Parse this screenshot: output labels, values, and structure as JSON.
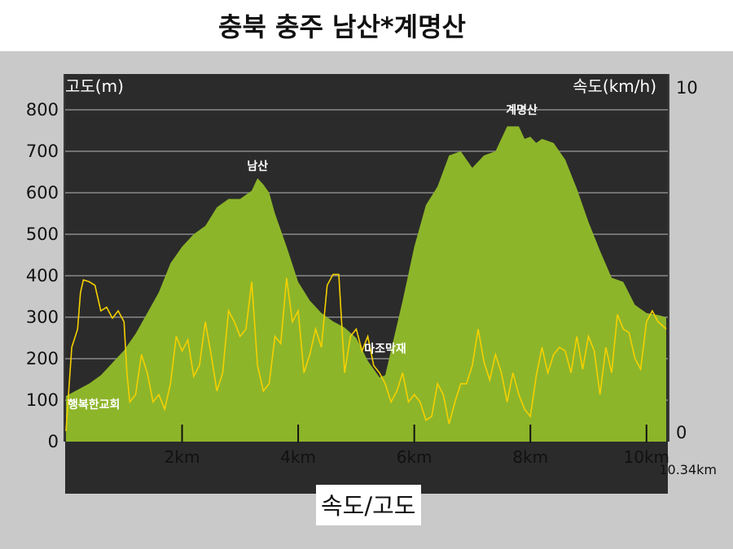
{
  "title": "충북 충주 남산*계명산",
  "footer": "속도/고도",
  "colors": {
    "plot_bg": "#2b2b2b",
    "panel_bg": "#c9c9c9",
    "elevation_fill": "#8db52a",
    "speed_line": "#f5d000",
    "grid": "#8a8a8a"
  },
  "chart_data": {
    "type": "area",
    "x_unit": "km",
    "x_range": [
      0,
      10.34
    ],
    "x_end_label": "10.34km",
    "xticks": [
      "2km",
      "4km",
      "6km",
      "8km",
      "10km"
    ],
    "xtick_values": [
      2,
      4,
      6,
      8,
      10
    ],
    "left_axis": {
      "label": "고도(m)",
      "range": [
        0,
        850
      ],
      "ticks": [
        "0",
        "100",
        "200",
        "300",
        "400",
        "500",
        "600",
        "700",
        "800"
      ],
      "tick_values": [
        0,
        100,
        200,
        300,
        400,
        500,
        600,
        700,
        800
      ]
    },
    "right_axis": {
      "label": "속도(km/h)",
      "range": [
        0,
        10
      ],
      "ticks": [
        "0",
        "10"
      ],
      "tick_values": [
        0,
        10
      ]
    },
    "grid": true,
    "series": [
      {
        "type": "area",
        "axis": "left",
        "x": [
          0,
          0.2,
          0.4,
          0.6,
          0.8,
          1.0,
          1.2,
          1.4,
          1.6,
          1.8,
          2.0,
          2.2,
          2.4,
          2.6,
          2.8,
          3.0,
          3.2,
          3.3,
          3.4,
          3.5,
          3.6,
          3.8,
          4.0,
          4.2,
          4.4,
          4.6,
          4.8,
          5.0,
          5.2,
          5.4,
          5.5,
          5.6,
          5.8,
          6.0,
          6.2,
          6.4,
          6.6,
          6.8,
          6.9,
          7.0,
          7.2,
          7.4,
          7.6,
          7.8,
          7.9,
          8.0,
          8.1,
          8.2,
          8.4,
          8.6,
          8.8,
          9.0,
          9.2,
          9.4,
          9.6,
          9.8,
          10.0,
          10.2,
          10.34
        ],
        "values": [
          110,
          125,
          140,
          160,
          190,
          220,
          260,
          310,
          360,
          430,
          470,
          500,
          520,
          565,
          585,
          585,
          605,
          635,
          620,
          600,
          550,
          470,
          385,
          340,
          310,
          290,
          275,
          250,
          195,
          155,
          160,
          220,
          340,
          470,
          570,
          615,
          690,
          700,
          680,
          660,
          690,
          700,
          760,
          760,
          730,
          735,
          720,
          730,
          720,
          680,
          610,
          530,
          460,
          395,
          385,
          330,
          310,
          305,
          300
        ]
      },
      {
        "type": "line",
        "axis": "right",
        "x": [
          0,
          0.1,
          0.2,
          0.25,
          0.3,
          0.4,
          0.5,
          0.6,
          0.7,
          0.8,
          0.9,
          1.0,
          1.05,
          1.1,
          1.2,
          1.3,
          1.4,
          1.5,
          1.6,
          1.7,
          1.8,
          1.9,
          2.0,
          2.1,
          2.2,
          2.3,
          2.4,
          2.5,
          2.6,
          2.7,
          2.8,
          2.9,
          3.0,
          3.1,
          3.2,
          3.3,
          3.4,
          3.5,
          3.6,
          3.7,
          3.8,
          3.9,
          4.0,
          4.1,
          4.2,
          4.3,
          4.4,
          4.5,
          4.6,
          4.7,
          4.8,
          4.9,
          5.0,
          5.1,
          5.2,
          5.3,
          5.4,
          5.5,
          5.6,
          5.7,
          5.8,
          5.9,
          6.0,
          6.1,
          6.2,
          6.3,
          6.4,
          6.5,
          6.6,
          6.7,
          6.8,
          6.9,
          7.0,
          7.1,
          7.2,
          7.3,
          7.4,
          7.5,
          7.6,
          7.7,
          7.8,
          7.9,
          8.0,
          8.1,
          8.2,
          8.3,
          8.4,
          8.5,
          8.6,
          8.7,
          8.8,
          8.9,
          9.0,
          9.1,
          9.2,
          9.3,
          9.4,
          9.5,
          9.6,
          9.7,
          9.8,
          9.9,
          10.0,
          10.1,
          10.2,
          10.34
        ],
        "values": [
          0.2,
          2.5,
          3.0,
          4.0,
          4.35,
          4.3,
          4.2,
          3.5,
          3.6,
          3.3,
          3.5,
          3.2,
          1.8,
          1.0,
          1.2,
          2.3,
          1.8,
          1.0,
          1.2,
          0.8,
          1.5,
          2.8,
          2.4,
          2.7,
          1.7,
          2.0,
          3.2,
          2.3,
          1.3,
          1.8,
          3.5,
          3.2,
          2.8,
          3.0,
          4.3,
          2.0,
          1.3,
          1.5,
          2.8,
          2.6,
          4.4,
          3.2,
          3.5,
          1.8,
          2.3,
          3.0,
          2.5,
          4.2,
          4.5,
          4.5,
          1.8,
          2.8,
          3.0,
          2.4,
          2.8,
          2.0,
          1.8,
          1.5,
          1.0,
          1.3,
          1.8,
          1.0,
          1.2,
          1.0,
          0.5,
          0.6,
          1.5,
          1.2,
          0.4,
          1.0,
          1.5,
          1.5,
          2.0,
          3.0,
          2.1,
          1.6,
          2.3,
          1.8,
          1.0,
          1.8,
          1.2,
          0.8,
          0.6,
          1.7,
          2.5,
          1.8,
          2.3,
          2.5,
          2.4,
          1.8,
          2.8,
          1.9,
          2.8,
          2.4,
          1.2,
          2.5,
          1.8,
          3.4,
          3.0,
          2.9,
          2.2,
          1.9,
          3.2,
          3.5,
          3.2,
          3.0
        ]
      }
    ],
    "annotations": [
      {
        "text": "행복한교회",
        "x": 0.1,
        "y": 80
      },
      {
        "text": "남산",
        "x": 3.3,
        "y": 655
      },
      {
        "text": "마조막재",
        "x": 5.5,
        "y": 215
      },
      {
        "text": "계명산",
        "x": 7.85,
        "y": 790
      }
    ]
  }
}
